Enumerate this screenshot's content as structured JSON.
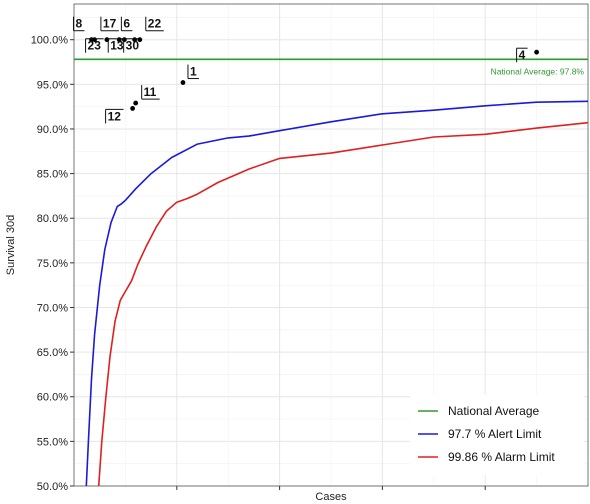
{
  "chart_data": {
    "type": "line",
    "title": "",
    "xlabel": "Cases",
    "ylabel": "Survival 30d",
    "ylim": [
      50.0,
      104.0
    ],
    "xlim": [
      0,
      500
    ],
    "y_ticks": [
      50.0,
      55.0,
      60.0,
      65.0,
      70.0,
      75.0,
      80.0,
      85.0,
      90.0,
      95.0,
      100.0
    ],
    "y_tick_labels": [
      "50.0%",
      "55.0%",
      "60.0%",
      "65.0%",
      "70.0%",
      "75.0%",
      "80.0%",
      "85.0%",
      "90.0%",
      "95.0%",
      "100.0%"
    ],
    "grid": true,
    "legend_position": "bottom-right",
    "reference_line": {
      "name": "National Average",
      "value": 97.8,
      "label": "National Average: 97.8%",
      "color": "#2e9a2e"
    },
    "series": [
      {
        "name": "97.7 %  Alert Limit",
        "color": "#1a1adb",
        "x": [
          12,
          14,
          17,
          20,
          25,
          30,
          36,
          42,
          46,
          50,
          60,
          75,
          95,
          120,
          150,
          170,
          200,
          250,
          300,
          350,
          400,
          450,
          500
        ],
        "values": [
          50.0,
          55.0,
          62.0,
          67.0,
          72.5,
          76.5,
          79.5,
          81.3,
          81.6,
          82.0,
          83.3,
          85.0,
          86.8,
          88.3,
          89.0,
          89.2,
          89.8,
          90.8,
          91.7,
          92.1,
          92.6,
          93.0,
          93.1
        ]
      },
      {
        "name": "99.86 %  Alarm Limit",
        "color": "#e02020",
        "x": [
          24,
          27,
          31,
          35,
          40,
          45,
          50,
          56,
          62,
          70,
          80,
          90,
          100,
          110,
          120,
          140,
          170,
          200,
          250,
          300,
          350,
          400,
          450,
          500
        ],
        "values": [
          50.0,
          55.0,
          60.0,
          64.5,
          68.5,
          70.8,
          71.8,
          73.0,
          74.8,
          76.8,
          79.0,
          80.8,
          81.8,
          82.2,
          82.7,
          84.0,
          85.5,
          86.7,
          87.3,
          88.2,
          89.1,
          89.4,
          90.1,
          90.7
        ]
      }
    ],
    "points": [
      {
        "label": "8",
        "x": 17,
        "y": 100.0
      },
      {
        "label": "23",
        "x": 20,
        "y": 100.0
      },
      {
        "label": "17",
        "x": 32,
        "y": 100.0
      },
      {
        "label": "13",
        "x": 44,
        "y": 100.0
      },
      {
        "label": "6",
        "x": 49,
        "y": 100.0
      },
      {
        "label": "30",
        "x": 59,
        "y": 100.0
      },
      {
        "label": "22",
        "x": 64,
        "y": 100.0
      },
      {
        "label": "12",
        "x": 57,
        "y": 92.3
      },
      {
        "label": "11",
        "x": 60,
        "y": 92.9
      },
      {
        "label": "1",
        "x": 106,
        "y": 95.2
      },
      {
        "label": "4",
        "x": 450,
        "y": 98.6
      }
    ]
  }
}
